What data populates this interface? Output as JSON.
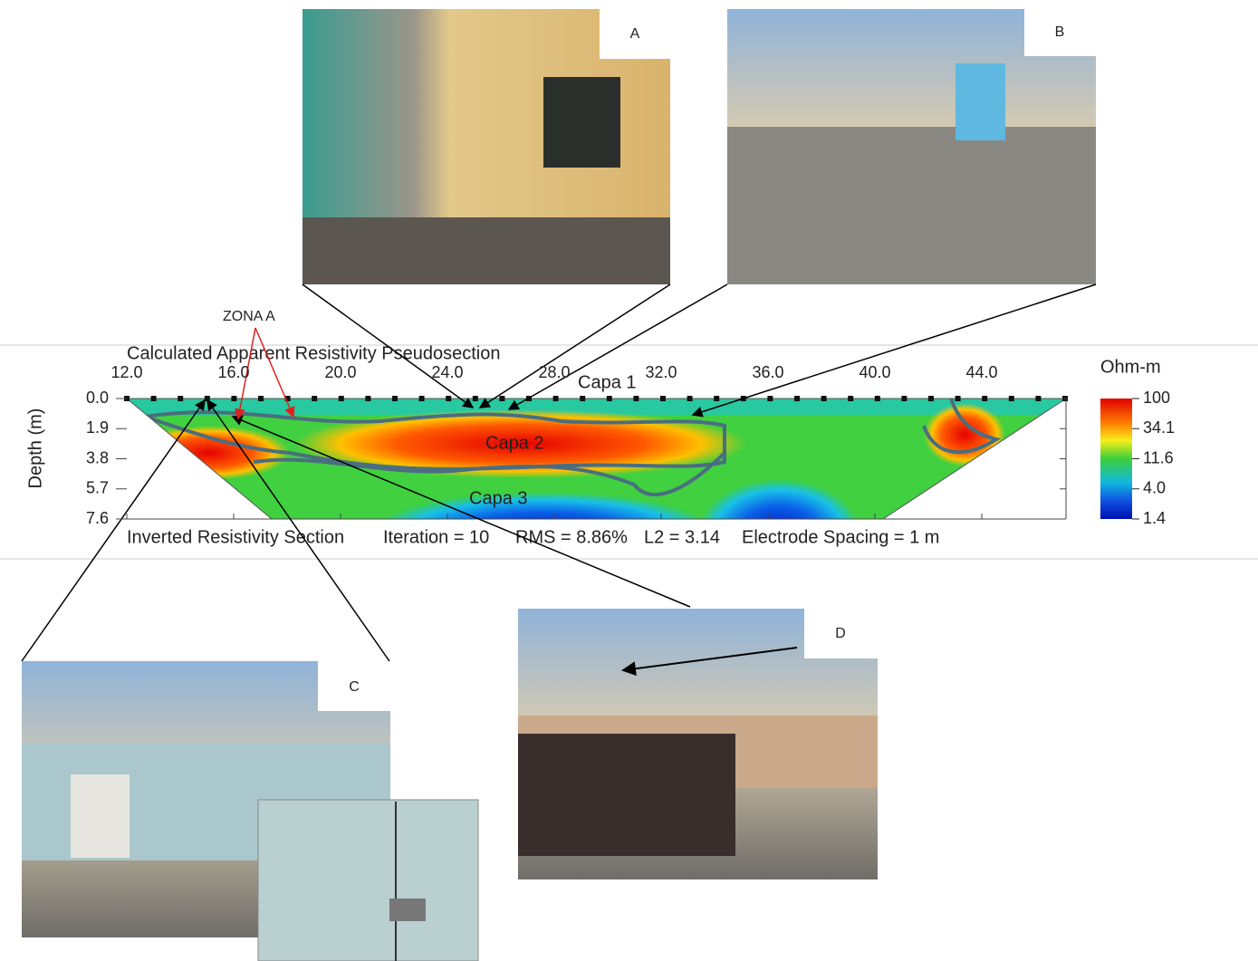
{
  "photos": [
    {
      "label": "A"
    },
    {
      "label": "B"
    },
    {
      "label": "C"
    },
    {
      "label": "D"
    }
  ],
  "zone_label": "ZONA A",
  "section": {
    "title": "Calculated Apparent Resistivity Pseudosection",
    "y_axis_label": "Depth (m)",
    "x_ticks": [
      "12.0",
      "16.0",
      "20.0",
      "24.0",
      "28.0",
      "32.0",
      "36.0",
      "40.0",
      "44.0"
    ],
    "y_ticks": [
      "0.0",
      "1.9",
      "3.8",
      "5.7",
      "7.6"
    ],
    "layers": [
      "Capa 1",
      "Capa 2",
      "Capa 3"
    ],
    "footer": [
      "Inverted Resistivity Section",
      "Iteration = 10",
      "RMS = 8.86%",
      "L2 = 3.14",
      "Electrode Spacing = 1 m"
    ]
  },
  "color_scale": {
    "unit": "Ohm-m",
    "ticks": [
      "100",
      "34.1",
      "11.6",
      "4.0",
      "1.4"
    ]
  }
}
